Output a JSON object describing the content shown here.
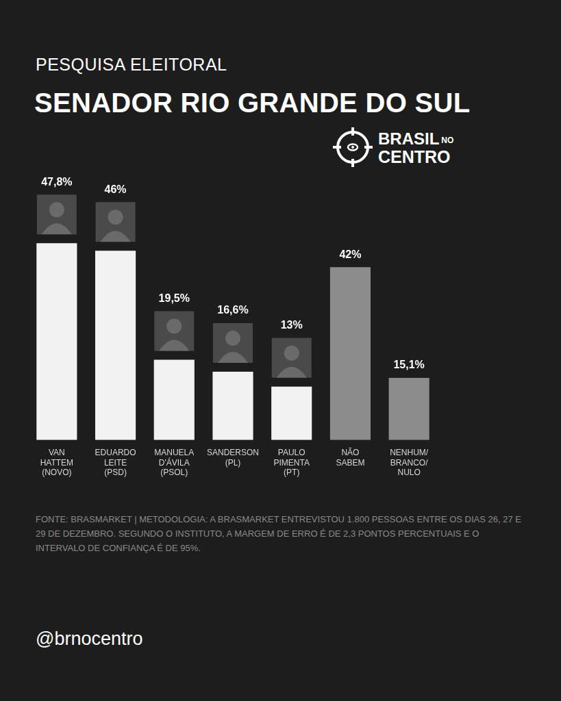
{
  "chart_data": {
    "type": "bar",
    "subtitle": "PESQUISA ELEITORAL",
    "title": "SENADOR RIO GRANDE DO SUL",
    "categories": [
      "VAN HATTEM (NOVO)",
      "EDUARDO LEITE (PSD)",
      "MANUELA D'ÁVILA (PSOL)",
      "SANDERSON (PL)",
      "PAULO PIMENTA (PT)",
      "NÃO SABEM",
      "NENHUM/ BRANCO/ NULO"
    ],
    "values": [
      47.8,
      46,
      19.5,
      16.6,
      13,
      42,
      15.1
    ],
    "value_labels": [
      "47,8%",
      "46%",
      "19,5%",
      "16,6%",
      "13%",
      "42%",
      "15,1%"
    ],
    "colors": [
      "#f2f2f2",
      "#f2f2f2",
      "#f2f2f2",
      "#f2f2f2",
      "#f2f2f2",
      "#8c8c8c",
      "#8c8c8c"
    ],
    "ylim": [
      0,
      60
    ],
    "data_labels": true,
    "tick_labels": "x",
    "grid": false,
    "source": "FONTE: BRASMARKET | METODOLOGIA: A BRASMARKET ENTREVISTOU 1.800 PESSOAS ENTRE OS DIAS 26, 27 E 29 DE DEZEMBRO. SEGUNDO O INSTITUTO, A MARGEM DE ERRO É DE 2,3 PONTOS PERCENTUAIS E O INTERVALO DE CONFIANÇA É DE 95%."
  },
  "logo": {
    "line1": "BRASIL",
    "line1_small": "NO",
    "line2": "CENTRO"
  },
  "handle": "@brnocentro"
}
